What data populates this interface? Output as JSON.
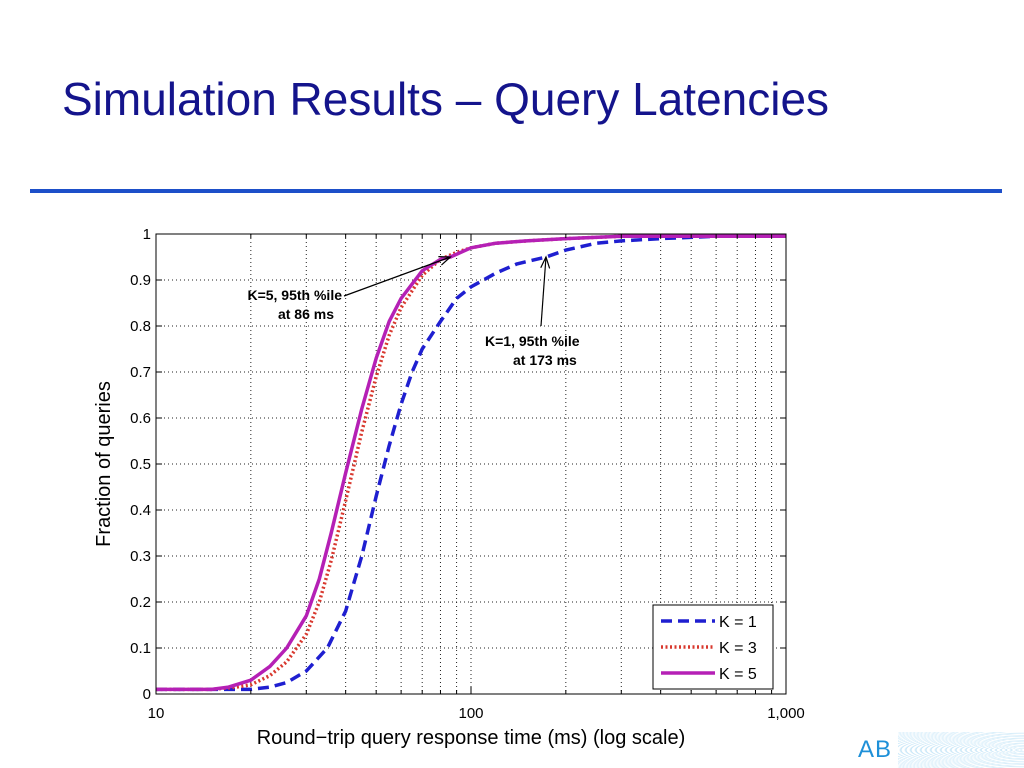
{
  "slide": {
    "title": "Simulation Results – Query Latencies",
    "logo_text": "AB"
  },
  "colors": {
    "title": "#14148c",
    "rule": "#1d4fc9",
    "k1": "#1f1fd0",
    "k3": "#d8382e",
    "k5": "#b520b5"
  },
  "chart_data": {
    "type": "line",
    "xscale": "log",
    "xlim": [
      10,
      1000
    ],
    "ylim": [
      0,
      1
    ],
    "grid": true,
    "xlabel": "Round−trip query response time (ms) (log scale)",
    "ylabel": "Fraction of queries",
    "xticks": [
      10,
      100,
      1000
    ],
    "xtick_labels": [
      "10",
      "100",
      "1,000"
    ],
    "yticks": [
      0,
      0.1,
      0.2,
      0.3,
      0.4,
      0.5,
      0.6,
      0.7,
      0.8,
      0.9,
      1
    ],
    "ytick_labels": [
      "0",
      "0.1",
      "0.2",
      "0.3",
      "0.4",
      "0.5",
      "0.6",
      "0.7",
      "0.8",
      "0.9",
      "1"
    ],
    "legend_position": "bottom-right",
    "series": [
      {
        "name": "K = 1",
        "style": "dashed",
        "x": [
          10,
          15,
          20,
          23,
          26,
          30,
          35,
          40,
          45,
          50,
          55,
          60,
          65,
          70,
          80,
          90,
          100,
          120,
          140,
          173,
          200,
          250,
          300,
          400,
          600,
          1000
        ],
        "y": [
          0.01,
          0.01,
          0.01,
          0.015,
          0.025,
          0.05,
          0.1,
          0.18,
          0.3,
          0.43,
          0.54,
          0.63,
          0.7,
          0.75,
          0.81,
          0.86,
          0.885,
          0.915,
          0.935,
          0.95,
          0.965,
          0.98,
          0.985,
          0.99,
          0.995,
          0.995
        ]
      },
      {
        "name": "K = 3",
        "style": "dotted",
        "x": [
          10,
          15,
          18,
          20,
          23,
          26,
          30,
          33,
          36,
          40,
          45,
          50,
          55,
          60,
          70,
          80,
          90,
          100,
          120,
          150,
          200,
          300,
          500,
          1000
        ],
        "y": [
          0.01,
          0.01,
          0.015,
          0.02,
          0.04,
          0.07,
          0.13,
          0.2,
          0.29,
          0.42,
          0.57,
          0.69,
          0.78,
          0.84,
          0.91,
          0.945,
          0.96,
          0.97,
          0.98,
          0.985,
          0.99,
          0.995,
          0.995,
          0.995
        ]
      },
      {
        "name": "K = 5",
        "style": "solid",
        "x": [
          10,
          15,
          17,
          20,
          23,
          26,
          30,
          33,
          36,
          40,
          45,
          50,
          55,
          60,
          70,
          80,
          86,
          100,
          120,
          150,
          200,
          300,
          500,
          1000
        ],
        "y": [
          0.01,
          0.01,
          0.015,
          0.03,
          0.06,
          0.1,
          0.17,
          0.25,
          0.35,
          0.48,
          0.62,
          0.73,
          0.81,
          0.86,
          0.92,
          0.945,
          0.95,
          0.97,
          0.98,
          0.985,
          0.99,
          0.995,
          0.995,
          0.995
        ]
      }
    ],
    "annotations": [
      {
        "lines": [
          "K=5, 95th %ile",
          "at 86 ms"
        ],
        "x": 86,
        "y": 0.95
      },
      {
        "lines": [
          "K=1, 95th %ile",
          "at 173 ms"
        ],
        "x": 173,
        "y": 0.95
      }
    ]
  }
}
